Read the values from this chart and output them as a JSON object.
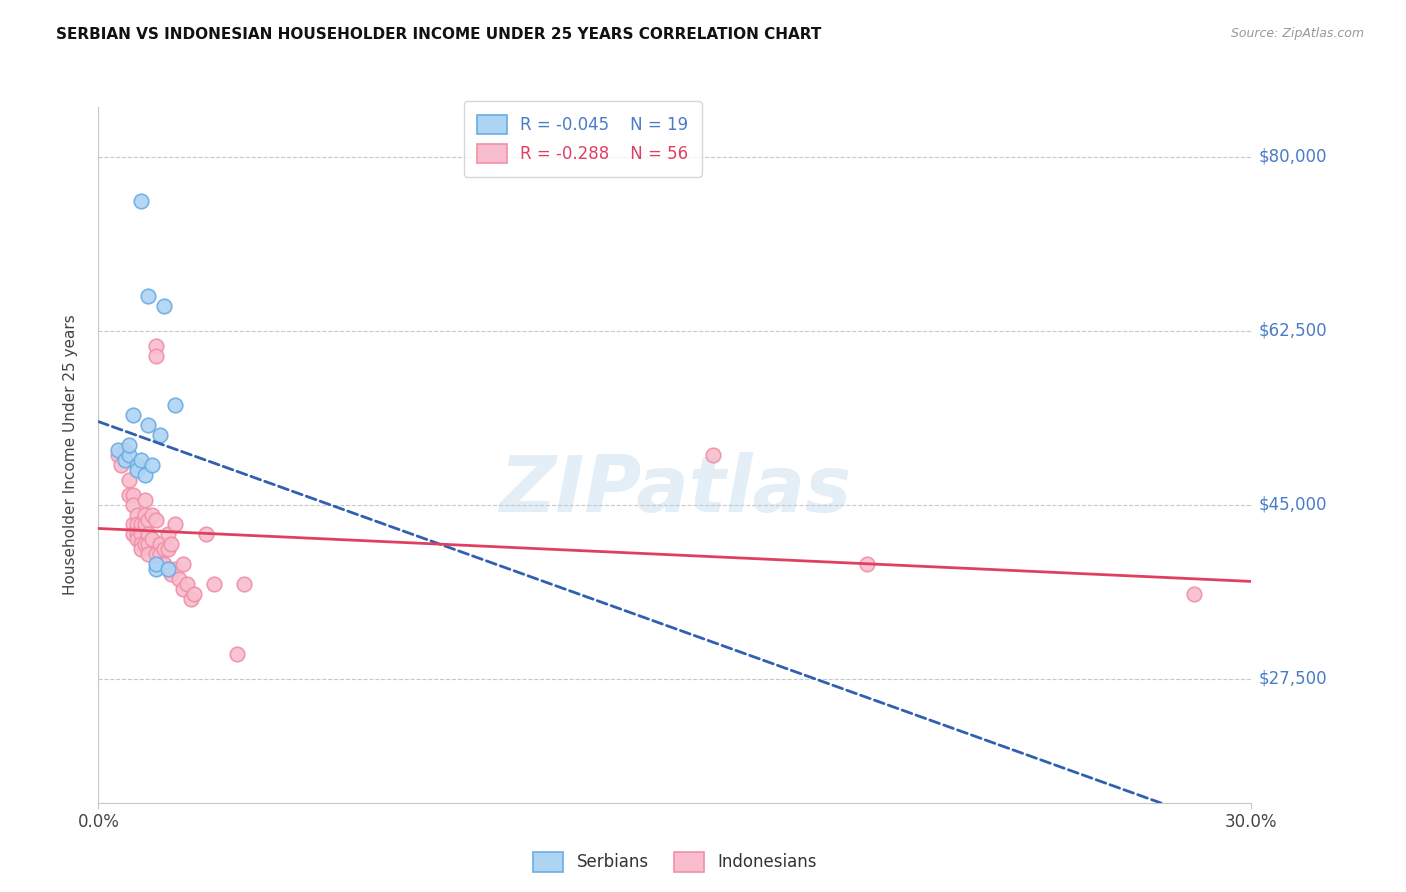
{
  "title": "SERBIAN VS INDONESIAN HOUSEHOLDER INCOME UNDER 25 YEARS CORRELATION CHART",
  "source": "Source: ZipAtlas.com",
  "ylabel": "Householder Income Under 25 years",
  "xlim": [
    0.0,
    0.3
  ],
  "ylim": [
    15000,
    85000
  ],
  "yticks": [
    27500,
    45000,
    62500,
    80000
  ],
  "ytick_labels": [
    "$27,500",
    "$45,000",
    "$62,500",
    "$80,000"
  ],
  "xtick_labels": [
    "0.0%",
    "30.0%"
  ],
  "bg_color": "#ffffff",
  "grid_color": "#c8c8c8",
  "serbian_edge_color": "#6aade4",
  "serbian_face_color": "#aed4f4",
  "indonesian_edge_color": "#f090a8",
  "indonesian_face_color": "#f9bece",
  "trend_serbian_color": "#3060b0",
  "trend_indonesian_color": "#e04060",
  "legend_line1": "R = -0.045    N = 19",
  "legend_line2": "R = -0.288    N = 56",
  "legend_color1": "#4a7cc7",
  "legend_color2": "#e04060",
  "watermark": "ZIPatlas",
  "serbians_label": "Serbians",
  "indonesians_label": "Indonesians",
  "ytick_label_color": "#4a7cc7",
  "serbian_x": [
    0.005,
    0.007,
    0.008,
    0.008,
    0.009,
    0.01,
    0.01,
    0.011,
    0.011,
    0.012,
    0.013,
    0.013,
    0.014,
    0.015,
    0.015,
    0.016,
    0.017,
    0.018,
    0.02
  ],
  "serbian_y": [
    50500,
    49500,
    50000,
    51000,
    54000,
    49000,
    48500,
    49500,
    75500,
    48000,
    53000,
    66000,
    49000,
    38500,
    39000,
    52000,
    65000,
    38500,
    55000
  ],
  "indonesian_x": [
    0.005,
    0.006,
    0.007,
    0.008,
    0.008,
    0.009,
    0.009,
    0.009,
    0.009,
    0.01,
    0.01,
    0.01,
    0.01,
    0.011,
    0.011,
    0.011,
    0.011,
    0.012,
    0.012,
    0.012,
    0.012,
    0.013,
    0.013,
    0.013,
    0.013,
    0.014,
    0.014,
    0.015,
    0.015,
    0.015,
    0.015,
    0.016,
    0.016,
    0.016,
    0.017,
    0.017,
    0.018,
    0.018,
    0.018,
    0.019,
    0.019,
    0.02,
    0.02,
    0.021,
    0.022,
    0.022,
    0.023,
    0.024,
    0.025,
    0.028,
    0.03,
    0.036,
    0.038,
    0.16,
    0.2,
    0.285
  ],
  "indonesian_y": [
    50000,
    49000,
    50500,
    47500,
    46000,
    46000,
    45000,
    43000,
    42000,
    44000,
    43000,
    42000,
    41500,
    43000,
    42000,
    41000,
    40500,
    45500,
    44000,
    43000,
    41000,
    43500,
    42000,
    41000,
    40000,
    44000,
    41500,
    61000,
    60000,
    43500,
    40000,
    41000,
    40000,
    39000,
    40500,
    39000,
    42000,
    40500,
    38500,
    41000,
    38000,
    43000,
    38500,
    37500,
    39000,
    36500,
    37000,
    35500,
    36000,
    42000,
    37000,
    30000,
    37000,
    50000,
    39000,
    36000
  ]
}
